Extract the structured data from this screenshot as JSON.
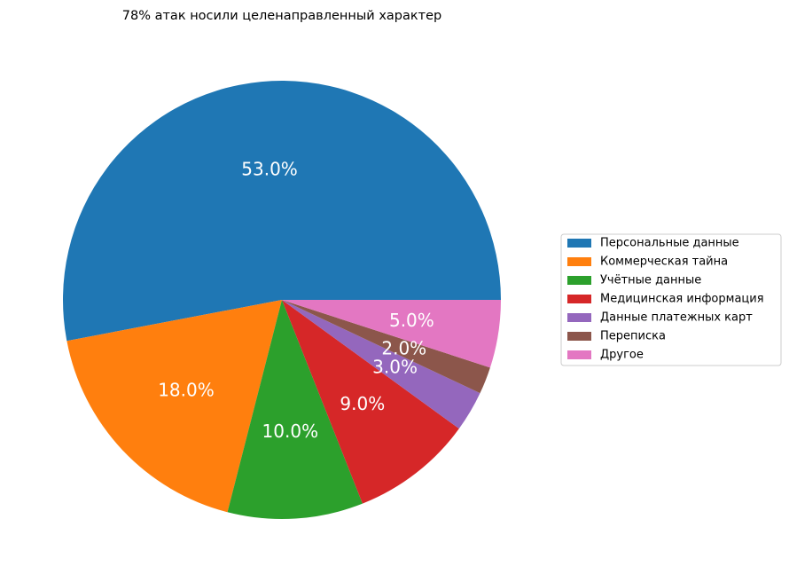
{
  "chart_data": {
    "type": "pie",
    "title": "78% атак носили целенаправленный характер",
    "start_angle_deg": 0,
    "direction": "counterclockwise",
    "legend_position": "center-right",
    "series": [
      {
        "name": "Персональные данные",
        "value": 53.0,
        "label": "53.0%",
        "color": "#1f77b4"
      },
      {
        "name": "Коммерческая тайна",
        "value": 18.0,
        "label": "18.0%",
        "color": "#ff7f0e"
      },
      {
        "name": "Учётные данные",
        "value": 10.0,
        "label": "10.0%",
        "color": "#2ca02c"
      },
      {
        "name": "Медицинская информация",
        "value": 9.0,
        "label": "9.0%",
        "color": "#d62728"
      },
      {
        "name": "Данные платежных карт",
        "value": 3.0,
        "label": "3.0%",
        "color": "#9467bd"
      },
      {
        "name": "Переписка",
        "value": 2.0,
        "label": "2.0%",
        "color": "#8c564b"
      },
      {
        "name": "Другое",
        "value": 5.0,
        "label": "5.0%",
        "color": "#e377c2"
      }
    ]
  }
}
